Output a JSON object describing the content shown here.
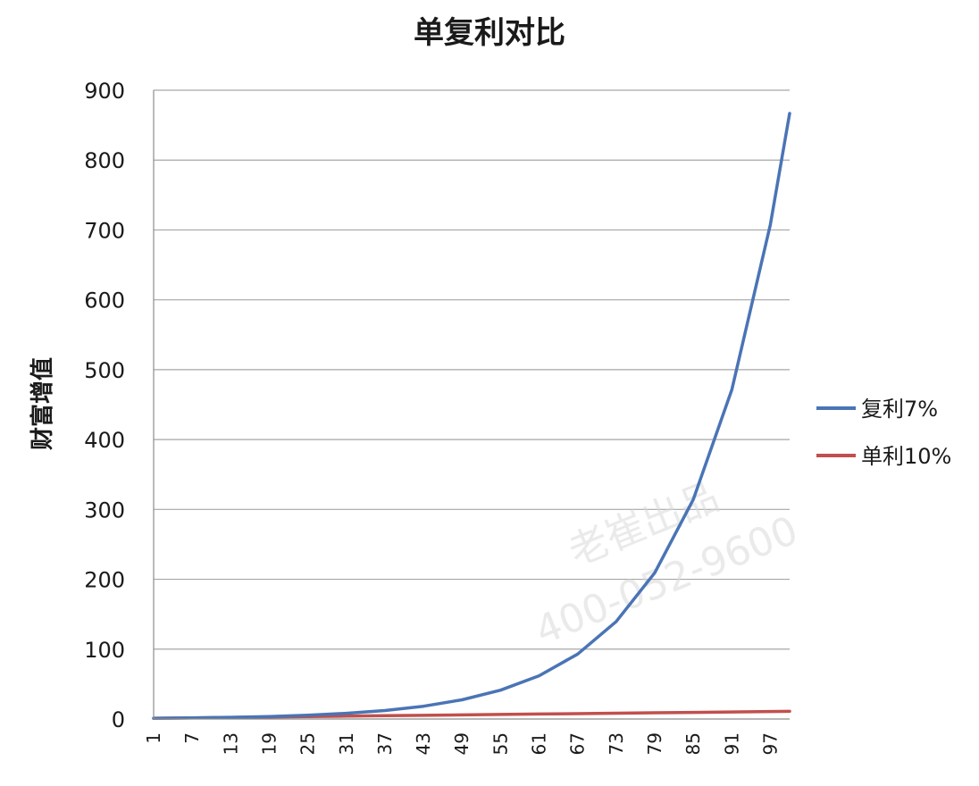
{
  "chart_data": {
    "type": "line",
    "title": "单复利对比",
    "xlabel": "",
    "ylabel": "财富增值",
    "ylim": [
      0,
      900
    ],
    "yticks": [
      0,
      100,
      200,
      300,
      400,
      500,
      600,
      700,
      800,
      900
    ],
    "xlim": [
      1,
      100
    ],
    "xticks": [
      1,
      7,
      13,
      19,
      25,
      31,
      37,
      43,
      49,
      55,
      61,
      67,
      73,
      79,
      85,
      91,
      97
    ],
    "grid": true,
    "legend_position": "right",
    "series": [
      {
        "name": "复利7%",
        "color": "#4a74b5",
        "x": [
          1,
          7,
          13,
          19,
          25,
          31,
          37,
          43,
          49,
          55,
          61,
          67,
          73,
          79,
          85,
          91,
          97,
          100
        ],
        "values": [
          1.07,
          1.61,
          2.41,
          3.62,
          5.43,
          8.15,
          12.2,
          18.3,
          27.5,
          41.3,
          61.9,
          92.9,
          139.5,
          209.3,
          314.1,
          471.4,
          707.5,
          866.7
        ]
      },
      {
        "name": "单利10%",
        "color": "#c0504d",
        "x": [
          1,
          7,
          13,
          19,
          25,
          31,
          37,
          43,
          49,
          55,
          61,
          67,
          73,
          79,
          85,
          91,
          97,
          100
        ],
        "values": [
          1.1,
          1.7,
          2.3,
          2.9,
          3.5,
          4.1,
          4.7,
          5.3,
          5.9,
          6.5,
          7.1,
          7.7,
          8.3,
          8.9,
          9.5,
          10.1,
          10.7,
          11.0
        ]
      }
    ]
  },
  "watermark": {
    "line1": "老崔出品",
    "line2": "400-052-9600"
  }
}
